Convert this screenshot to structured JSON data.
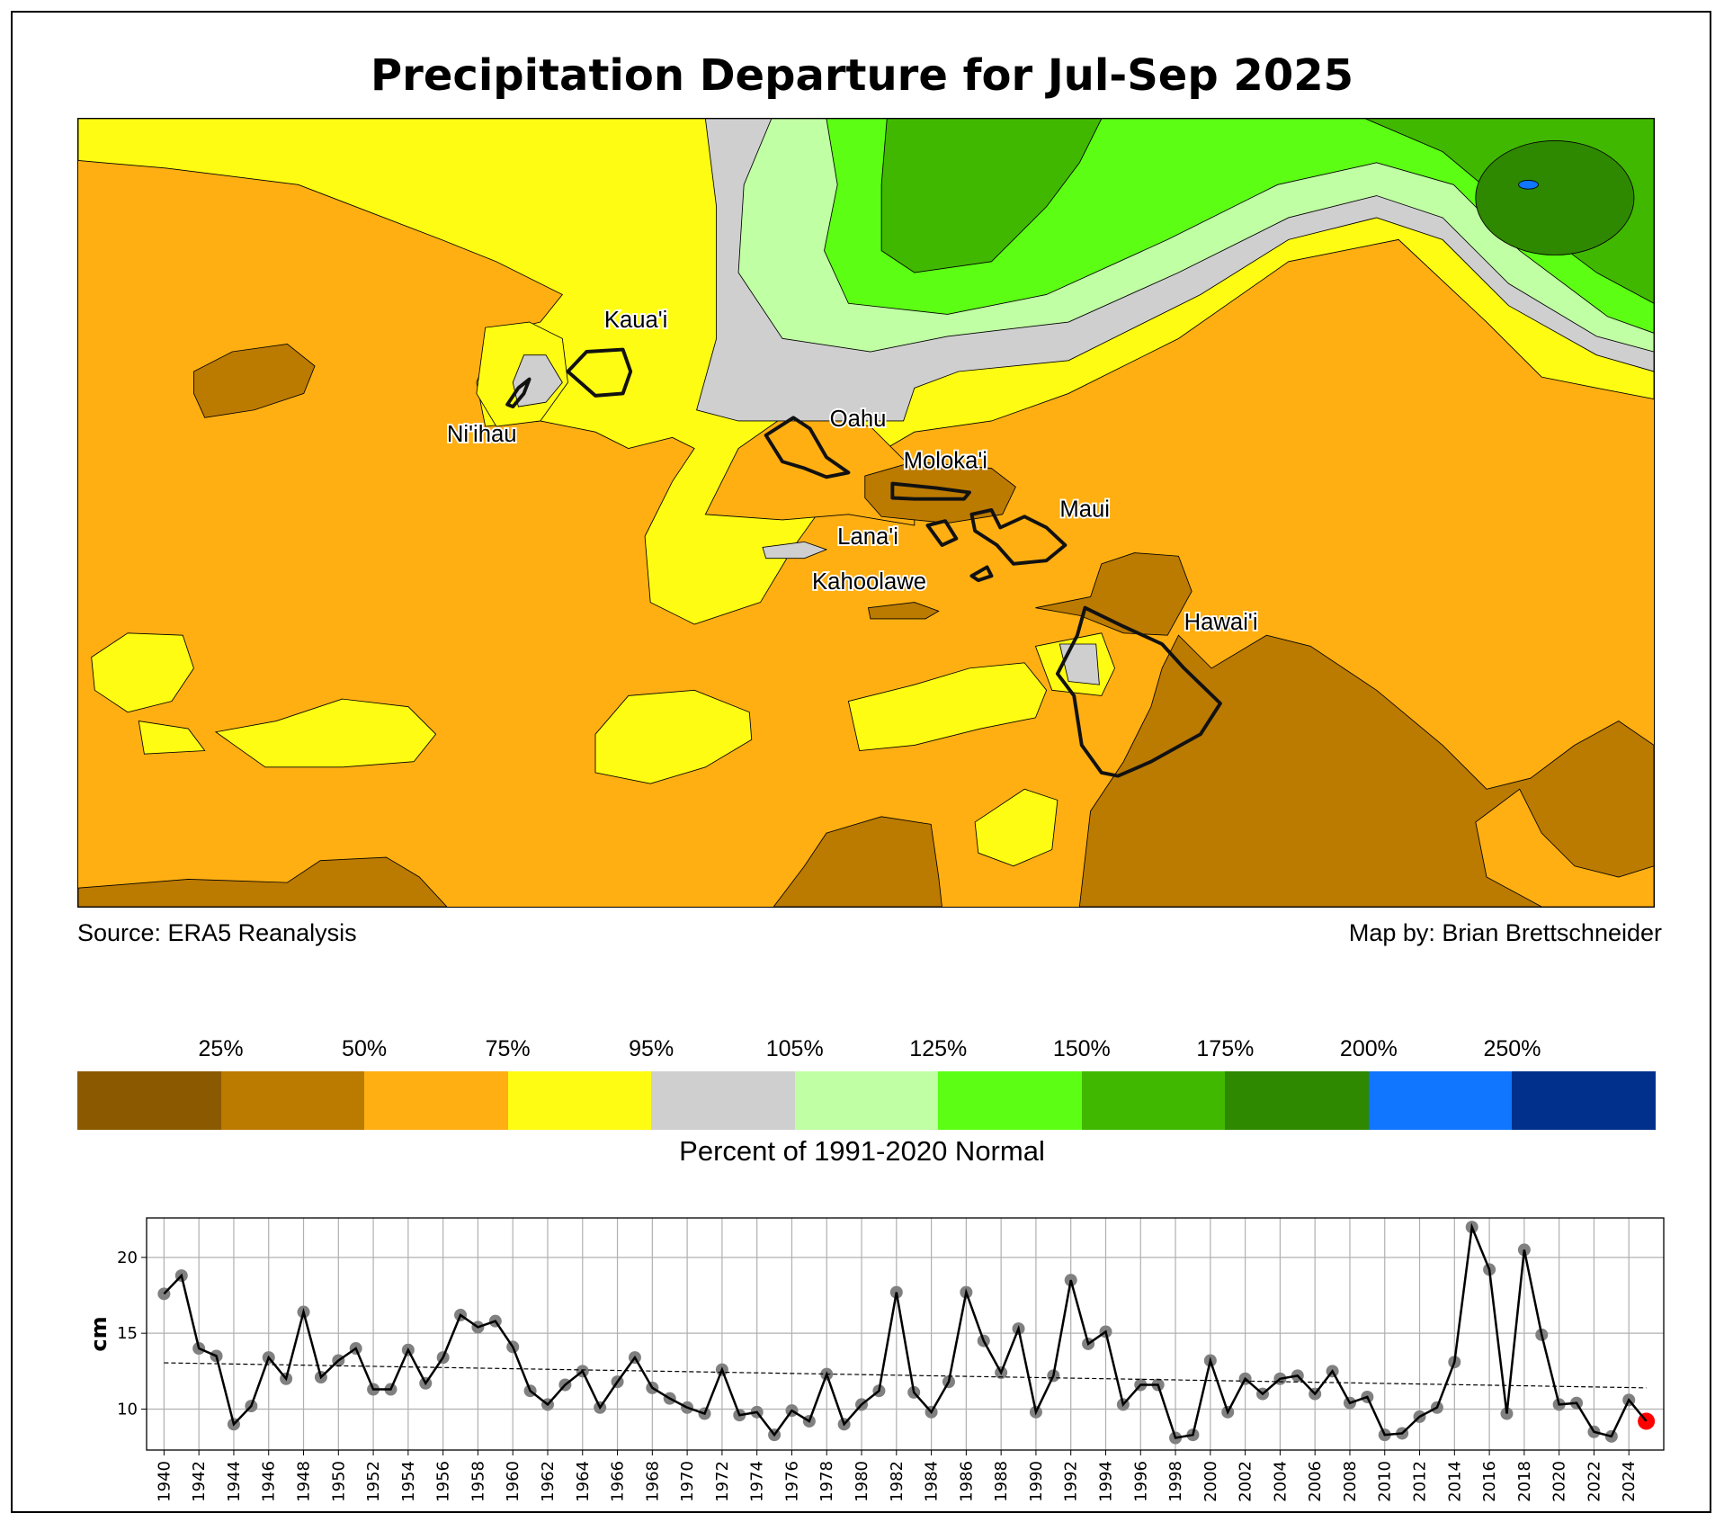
{
  "title": "Precipitation Departure for Jul-Sep 2025",
  "source": "Source: ERA5 Reanalysis",
  "credit": "Map by: Brian Brettschneider",
  "islands": {
    "kauai": "Kaua'i",
    "niihau": "Ni'ihau",
    "oahu": "Oahu",
    "molokai": "Moloka'i",
    "maui": "Maui",
    "lanai": "Lana'i",
    "kahoolawe": "Kahoolawe",
    "hawaii": "Hawai'i"
  },
  "colorbar": {
    "title": "Percent of 1991-2020 Normal",
    "labels": [
      "25%",
      "50%",
      "75%",
      "95%",
      "105%",
      "125%",
      "150%",
      "175%",
      "200%",
      "250%"
    ],
    "colors": [
      "#8B5A00",
      "#BB7A00",
      "#FFAF12",
      "#FFFC14",
      "#CFCFCF",
      "#C0FFA4",
      "#5CFF14",
      "#40B800",
      "#2E8800",
      "#1075FF",
      "#00308C"
    ]
  },
  "chart_data": {
    "type": "line",
    "title": "",
    "xlabel": "",
    "ylabel": "cm",
    "ylim": [
      7.3,
      22.6
    ],
    "yticks": [
      10,
      15,
      20
    ],
    "xlim": [
      1939,
      2026
    ],
    "xticks": [
      1940,
      1942,
      1944,
      1946,
      1948,
      1950,
      1952,
      1954,
      1956,
      1958,
      1960,
      1962,
      1964,
      1966,
      1968,
      1970,
      1972,
      1974,
      1976,
      1978,
      1980,
      1982,
      1984,
      1986,
      1988,
      1990,
      1992,
      1994,
      1996,
      1998,
      2000,
      2002,
      2004,
      2006,
      2008,
      2010,
      2012,
      2014,
      2016,
      2018,
      2020,
      2022,
      2024
    ],
    "grid": true,
    "x_start": 1940,
    "values": [
      17.6,
      18.8,
      14.0,
      13.5,
      9.0,
      10.2,
      13.4,
      12.0,
      16.4,
      12.1,
      13.2,
      14.0,
      11.3,
      11.3,
      13.9,
      11.7,
      13.4,
      16.2,
      15.4,
      15.8,
      14.1,
      11.2,
      10.3,
      11.6,
      12.5,
      10.1,
      11.8,
      13.4,
      11.4,
      10.7,
      10.1,
      9.7,
      12.6,
      9.6,
      9.8,
      8.3,
      9.9,
      9.2,
      12.3,
      9.0,
      10.3,
      11.2,
      17.7,
      11.1,
      9.8,
      11.8,
      17.7,
      14.5,
      12.4,
      15.3,
      9.8,
      12.2,
      18.5,
      14.3,
      15.1,
      10.3,
      11.6,
      11.6,
      8.1,
      8.3,
      13.2,
      9.8,
      12.0,
      11.0,
      12.0,
      12.2,
      11.0,
      12.5,
      10.4,
      10.8,
      8.3,
      8.4,
      9.5,
      10.1,
      13.1,
      22.0,
      19.2,
      9.7,
      20.5,
      14.9,
      10.3,
      10.4,
      8.5,
      8.2,
      10.6,
      9.2
    ],
    "trend": {
      "start": [
        1940,
        13.05
      ],
      "end": [
        2025,
        11.4
      ]
    },
    "highlight": {
      "year": 2025,
      "color": "#FF0000"
    },
    "marker_color": "#808080"
  }
}
